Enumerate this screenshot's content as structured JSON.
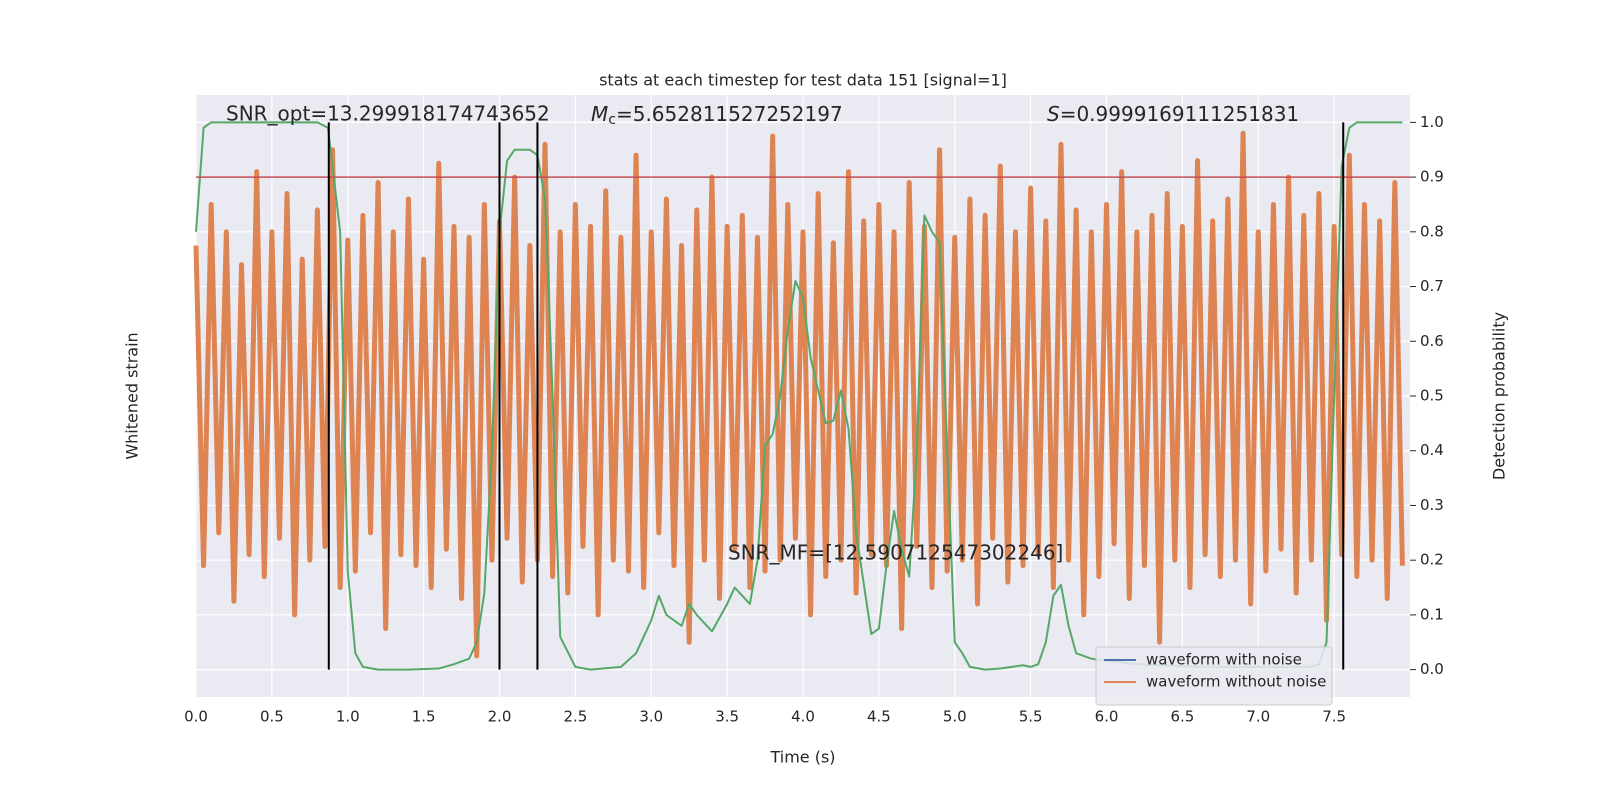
{
  "chart_data": {
    "type": "line",
    "title": "stats at each timestep for test data 151 [signal=1]",
    "x_label": "Time (s)",
    "y_label": "Whitened strain",
    "y2_label": "Detection probability",
    "xlim": [
      0,
      8
    ],
    "xticks": [
      {
        "value": 0,
        "label": "0.0"
      },
      {
        "value": 0.5,
        "label": "0.5"
      },
      {
        "value": 1,
        "label": "1.0"
      },
      {
        "value": 1.5,
        "label": "1.5"
      },
      {
        "value": 2,
        "label": "2.0"
      },
      {
        "value": 2.5,
        "label": "2.5"
      },
      {
        "value": 3,
        "label": "3.0"
      },
      {
        "value": 3.5,
        "label": "3.5"
      },
      {
        "value": 4,
        "label": "4.0"
      },
      {
        "value": 4.5,
        "label": "4.5"
      },
      {
        "value": 5,
        "label": "5.0"
      },
      {
        "value": 5.5,
        "label": "5.5"
      },
      {
        "value": 6,
        "label": "6.0"
      },
      {
        "value": 6.5,
        "label": "6.5"
      },
      {
        "value": 7,
        "label": "7.0"
      },
      {
        "value": 7.5,
        "label": "7.5"
      }
    ],
    "ylim": [
      -1.1,
      1.1
    ],
    "y2lim": [
      -0.05,
      1.05
    ],
    "y2ticks": [
      {
        "value": 0,
        "label": "0.0"
      },
      {
        "value": 0.1,
        "label": "0.1"
      },
      {
        "value": 0.2,
        "label": "0.2"
      },
      {
        "value": 0.3,
        "label": "0.3"
      },
      {
        "value": 0.4,
        "label": "0.4"
      },
      {
        "value": 0.5,
        "label": "0.5"
      },
      {
        "value": 0.6,
        "label": "0.6"
      },
      {
        "value": 0.7,
        "label": "0.7"
      },
      {
        "value": 0.8,
        "label": "0.8"
      },
      {
        "value": 0.9,
        "label": "0.9"
      },
      {
        "value": 1,
        "label": "1.0"
      }
    ],
    "grid": true,
    "legend": "lower right",
    "annotations": [
      {
        "text": "SNR_opt=13.299918174743652"
      },
      {
        "symbol": "M",
        "subscript": "c",
        "text": "=5.652811527252197"
      },
      {
        "symbol": "S",
        "text": "=0.9999169111251831"
      },
      {
        "text": "SNR_MF=[12.590712547302246]"
      }
    ],
    "hline": 0.9,
    "hline_color": "#c44e52",
    "vlines": [
      0.875,
      2.0,
      2.25,
      7.56
    ],
    "vline_color": "#000000",
    "x": [
      0,
      0.05,
      0.1,
      0.15,
      0.2,
      0.25,
      0.3,
      0.35,
      0.4,
      0.45,
      0.5,
      0.55,
      0.6,
      0.65,
      0.7,
      0.75,
      0.8,
      0.85,
      0.9,
      0.95,
      1,
      1.05,
      1.1,
      1.15,
      1.2,
      1.25,
      1.3,
      1.35,
      1.4,
      1.45,
      1.5,
      1.55,
      1.6,
      1.65,
      1.7,
      1.75,
      1.8,
      1.85,
      1.9,
      1.95,
      2,
      2.05,
      2.1,
      2.15,
      2.2,
      2.25,
      2.3,
      2.35,
      2.4,
      2.45,
      2.5,
      2.55,
      2.6,
      2.65,
      2.7,
      2.75,
      2.8,
      2.85,
      2.9,
      2.95,
      3,
      3.05,
      3.1,
      3.15,
      3.2,
      3.25,
      3.3,
      3.35,
      3.4,
      3.45,
      3.5,
      3.55,
      3.6,
      3.65,
      3.7,
      3.75,
      3.8,
      3.85,
      3.9,
      3.95,
      4,
      4.05,
      4.1,
      4.15,
      4.2,
      4.25,
      4.3,
      4.35,
      4.4,
      4.45,
      4.5,
      4.55,
      4.6,
      4.65,
      4.7,
      4.75,
      4.8,
      4.85,
      4.9,
      4.95,
      5,
      5.05,
      5.1,
      5.15,
      5.2,
      5.25,
      5.3,
      5.35,
      5.4,
      5.45,
      5.5,
      5.55,
      5.6,
      5.65,
      5.7,
      5.75,
      5.8,
      5.85,
      5.9,
      5.95,
      6,
      6.05,
      6.1,
      6.15,
      6.2,
      6.25,
      6.3,
      6.35,
      6.4,
      6.45,
      6.5,
      6.55,
      6.6,
      6.65,
      6.7,
      6.75,
      6.8,
      6.85,
      6.9,
      6.95,
      7,
      7.05,
      7.1,
      7.15,
      7.2,
      7.25,
      7.3,
      7.35,
      7.4,
      7.45,
      7.5,
      7.55,
      7.6,
      7.65,
      7.7,
      7.75,
      7.8,
      7.85,
      7.9,
      7.95
    ],
    "series": [
      {
        "name": "waveform with noise",
        "color": "#4c72b0"
      },
      {
        "name": "waveform without noise",
        "color": "#dd8452",
        "values": [
          0.55,
          -0.62,
          0.7,
          -0.5,
          0.6,
          -0.75,
          0.48,
          -0.58,
          0.82,
          -0.66,
          0.6,
          -0.52,
          0.74,
          -0.8,
          0.5,
          -0.6,
          0.68,
          -0.55,
          0.9,
          -0.7,
          0.57,
          -0.64,
          0.66,
          -0.5,
          0.78,
          -0.85,
          0.6,
          -0.58,
          0.72,
          -0.62,
          0.5,
          -0.7,
          0.85,
          -0.56,
          0.62,
          -0.74,
          0.58,
          -0.95,
          0.7,
          -0.6,
          0.64,
          -0.52,
          0.8,
          -0.68,
          0.55,
          -0.6,
          0.92,
          -0.66,
          0.6,
          -0.72,
          0.7,
          -0.55,
          0.62,
          -0.8,
          0.75,
          -0.6,
          0.58,
          -0.64,
          0.88,
          -0.7,
          0.6,
          -0.5,
          0.72,
          -0.62,
          0.55,
          -0.9,
          0.68,
          -0.6,
          0.8,
          -0.74,
          0.62,
          -0.56,
          0.66,
          -0.7,
          0.58,
          -0.64,
          0.95,
          -0.6,
          0.7,
          -0.52,
          0.6,
          -0.8,
          0.74,
          -0.66,
          0.56,
          -0.6,
          0.82,
          -0.72,
          0.64,
          -0.58,
          0.7,
          -0.62,
          0.6,
          -0.85,
          0.78,
          -0.55,
          0.62,
          -0.7,
          0.9,
          -0.64,
          0.58,
          -0.6,
          0.72,
          -0.76,
          0.66,
          -0.52,
          0.84,
          -0.68,
          0.6,
          -0.62,
          0.76,
          -0.58,
          0.64,
          -0.7,
          0.92,
          -0.6,
          0.68,
          -0.8,
          0.6,
          -0.66,
          0.7,
          -0.54,
          0.82,
          -0.74,
          0.6,
          -0.62,
          0.66,
          -0.9,
          0.74,
          -0.6,
          0.62,
          -0.7,
          0.86,
          -0.58,
          0.64,
          -0.66,
          0.72,
          -0.6,
          0.96,
          -0.76,
          0.6,
          -0.64,
          0.7,
          -0.56,
          0.8,
          -0.72,
          0.66,
          -0.6,
          0.74,
          -0.82,
          0.62,
          -0.58,
          0.88,
          -0.66,
          0.7,
          -0.6,
          0.64,
          -0.74,
          0.78,
          -0.62
        ]
      },
      {
        "color": "#55a868",
        "axis": "y2",
        "x": [
          0,
          0.05,
          0.1,
          0.2,
          0.4,
          0.6,
          0.8,
          0.87,
          0.95,
          1,
          1.05,
          1.1,
          1.2,
          1.4,
          1.6,
          1.7,
          1.8,
          1.85,
          1.9,
          1.95,
          2,
          2.05,
          2.1,
          2.15,
          2.2,
          2.25,
          2.3,
          2.35,
          2.4,
          2.5,
          2.6,
          2.8,
          2.9,
          3,
          3.05,
          3.1,
          3.2,
          3.25,
          3.3,
          3.4,
          3.5,
          3.55,
          3.65,
          3.7,
          3.75,
          3.8,
          3.85,
          3.9,
          3.95,
          4,
          4.05,
          4.15,
          4.2,
          4.25,
          4.3,
          4.35,
          4.45,
          4.5,
          4.55,
          4.6,
          4.65,
          4.7,
          4.75,
          4.8,
          4.85,
          4.9,
          4.95,
          5,
          5.05,
          5.1,
          5.2,
          5.3,
          5.45,
          5.5,
          5.55,
          5.6,
          5.65,
          5.7,
          5.75,
          5.8,
          5.9,
          6.2,
          6.6,
          7,
          7.35,
          7.4,
          7.45,
          7.5,
          7.55,
          7.6,
          7.65,
          7.8,
          7.95
        ],
        "values": [
          0.8,
          0.99,
          1,
          1,
          1,
          1,
          1,
          0.99,
          0.8,
          0.18,
          0.03,
          0.005,
          0,
          0,
          0.002,
          0.01,
          0.02,
          0.05,
          0.14,
          0.4,
          0.8,
          0.93,
          0.95,
          0.95,
          0.95,
          0.94,
          0.86,
          0.5,
          0.06,
          0.005,
          0,
          0.005,
          0.03,
          0.09,
          0.135,
          0.1,
          0.08,
          0.12,
          0.1,
          0.07,
          0.12,
          0.15,
          0.12,
          0.2,
          0.41,
          0.43,
          0.5,
          0.62,
          0.71,
          0.68,
          0.57,
          0.45,
          0.455,
          0.51,
          0.44,
          0.25,
          0.065,
          0.075,
          0.19,
          0.29,
          0.22,
          0.17,
          0.4,
          0.83,
          0.8,
          0.78,
          0.4,
          0.05,
          0.03,
          0.005,
          0,
          0.002,
          0.008,
          0.005,
          0.01,
          0.05,
          0.135,
          0.155,
          0.08,
          0.03,
          0.02,
          0.01,
          0.005,
          0.005,
          0.005,
          0.01,
          0.05,
          0.5,
          0.92,
          0.99,
          1,
          1,
          1
        ]
      }
    ]
  }
}
